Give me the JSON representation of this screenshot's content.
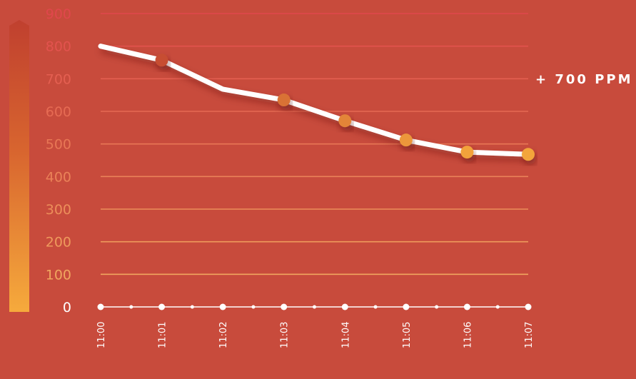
{
  "colors": {
    "background": "#c84b3c",
    "line": "#ffffff",
    "scale_top": "#c0402f",
    "scale_bottom": "#f6aa3c"
  },
  "annotation": "+ 700 PPM",
  "chart_data": {
    "type": "line",
    "title": "",
    "xlabel": "",
    "ylabel": "",
    "ylim": [
      0,
      900
    ],
    "yticks": [
      0,
      100,
      200,
      300,
      400,
      500,
      600,
      700,
      800,
      900
    ],
    "x": [
      "11:00",
      "11:01",
      "11:02",
      "11:03",
      "11:04",
      "11:05",
      "11:06",
      "11:07"
    ],
    "series": [
      {
        "values": [
          800,
          757,
          668,
          635,
          571,
          512,
          475,
          468
        ],
        "marker": [
          false,
          true,
          false,
          true,
          true,
          true,
          true,
          true
        ]
      }
    ],
    "grid": true,
    "legend": "none"
  }
}
